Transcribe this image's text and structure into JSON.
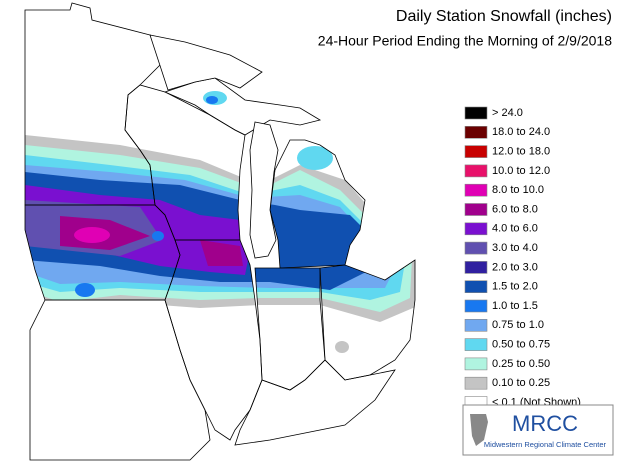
{
  "header": {
    "title": "Daily Station Snowfall (inches)",
    "subtitle": "24-Hour Period Ending the Morning of 2/9/2018"
  },
  "legend": [
    {
      "label": "> 24.0",
      "color": "#000000"
    },
    {
      "label": "18.0 to 24.0",
      "color": "#6b0000"
    },
    {
      "label": "12.0 to 18.0",
      "color": "#c80000"
    },
    {
      "label": "10.0 to 12.0",
      "color": "#e8106a"
    },
    {
      "label": "8.0 to 10.0",
      "color": "#e000b4"
    },
    {
      "label": "6.0 to 8.0",
      "color": "#a0008c"
    },
    {
      "label": "4.0 to 6.0",
      "color": "#7a10d0"
    },
    {
      "label": "3.0 to 4.0",
      "color": "#6050b0"
    },
    {
      "label": "2.0 to 3.0",
      "color": "#3020a0"
    },
    {
      "label": "1.5 to 2.0",
      "color": "#1050b0"
    },
    {
      "label": "1.0 to 1.5",
      "color": "#1878f0"
    },
    {
      "label": "0.75 to 1.0",
      "color": "#70a8f0"
    },
    {
      "label": "0.50 to 0.75",
      "color": "#60d8f0"
    },
    {
      "label": "0.25 to 0.50",
      "color": "#b0f4e0"
    },
    {
      "label": "0.10 to 0.25",
      "color": "#c4c4c4"
    },
    {
      "label": "< 0.1 (Not Shown)",
      "color": "#ffffff"
    }
  ],
  "logo": {
    "name": "MRCC",
    "caption": "Midwestern Regional Climate Center"
  }
}
